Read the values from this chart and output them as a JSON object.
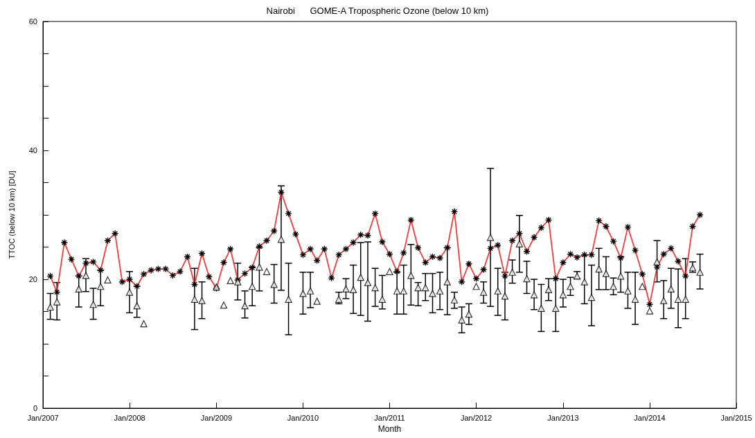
{
  "chart_data": {
    "type": "line",
    "title": "Nairobi      GOME-A Tropospheric Ozone (below 10 km)",
    "xlabel": "Month",
    "ylabel": "TTOC (below 10 km) [DU]",
    "x": [
      "2007-02",
      "2007-03",
      "2007-04",
      "2007-05",
      "2007-06",
      "2007-07",
      "2007-08",
      "2007-09",
      "2007-10",
      "2007-11",
      "2007-12",
      "2008-01",
      "2008-02",
      "2008-03",
      "2008-04",
      "2008-05",
      "2008-06",
      "2008-07",
      "2008-08",
      "2008-09",
      "2008-10",
      "2008-11",
      "2008-12",
      "2009-01",
      "2009-02",
      "2009-03",
      "2009-04",
      "2009-05",
      "2009-06",
      "2009-07",
      "2009-08",
      "2009-09",
      "2009-10",
      "2009-11",
      "2009-12",
      "2010-01",
      "2010-02",
      "2010-03",
      "2010-04",
      "2010-05",
      "2010-06",
      "2010-07",
      "2010-08",
      "2010-09",
      "2010-10",
      "2010-11",
      "2010-12",
      "2011-01",
      "2011-02",
      "2011-03",
      "2011-04",
      "2011-05",
      "2011-06",
      "2011-07",
      "2011-08",
      "2011-09",
      "2011-10",
      "2011-11",
      "2011-12",
      "2012-01",
      "2012-02",
      "2012-03",
      "2012-04",
      "2012-05",
      "2012-06",
      "2012-07",
      "2012-08",
      "2012-09",
      "2012-10",
      "2012-11",
      "2012-12",
      "2013-01",
      "2013-02",
      "2013-03",
      "2013-04",
      "2013-05",
      "2013-06",
      "2013-07",
      "2013-08",
      "2013-09",
      "2013-10",
      "2013-11",
      "2013-12",
      "2014-01",
      "2014-02",
      "2014-03",
      "2014-04",
      "2014-05",
      "2014-06",
      "2014-07",
      "2014-08"
    ],
    "series": [
      {
        "color": "#f03c3c",
        "marker": "cross",
        "values": [
          20.5,
          18.0,
          25.7,
          23.1,
          20.5,
          22.5,
          22.7,
          21.4,
          26.0,
          27.1,
          19.6,
          20.0,
          18.9,
          20.8,
          21.4,
          21.6,
          21.6,
          20.6,
          21.2,
          23.5,
          19.2,
          24.0,
          20.4,
          18.6,
          22.6,
          24.7,
          19.9,
          20.9,
          21.8,
          25.1,
          26.0,
          27.5,
          33.5,
          30.2,
          27.0,
          23.8,
          24.7,
          22.9,
          24.7,
          20.2,
          23.8,
          24.7,
          25.7,
          26.9,
          26.8,
          30.2,
          25.8,
          23.9,
          21.2,
          24.1,
          29.2,
          24.9,
          22.6,
          23.5,
          23.3,
          24.9,
          30.5,
          19.6,
          22.4,
          20.1,
          21.5,
          24.8,
          25.3,
          20.5,
          26.0,
          27.1,
          24.3,
          26.5,
          28.0,
          29.2,
          20.1,
          22.6,
          23.9,
          23.4,
          23.8,
          23.8,
          29.1,
          28.2,
          25.9,
          23.3,
          28.1,
          24.5,
          20.8,
          16.1,
          21.9,
          23.9,
          24.8,
          22.8,
          20.5,
          28.2,
          30.0
        ]
      },
      {
        "type": "scatter",
        "color": "#000000",
        "marker": "triangle",
        "values": [
          15.7,
          16.5,
          null,
          null,
          18.5,
          20.6,
          16.1,
          18.9,
          19.9,
          null,
          null,
          18.0,
          15.9,
          13.1,
          null,
          null,
          null,
          null,
          null,
          null,
          16.9,
          16.7,
          null,
          18.8,
          16.0,
          19.8,
          19.6,
          15.9,
          18.9,
          21.9,
          21.2,
          19.2,
          26.2,
          16.9,
          null,
          17.8,
          18.2,
          16.6,
          null,
          null,
          16.9,
          18.5,
          18.4,
          20.3,
          19.5,
          18.7,
          16.9,
          21.2,
          18.2,
          18.2,
          20.6,
          18.7,
          18.7,
          17.8,
          18.2,
          19.6,
          16.8,
          13.7,
          14.6,
          18.9,
          18.0,
          26.5,
          18.2,
          17.4,
          21.1,
          25.5,
          20.1,
          17.6,
          15.5,
          18.4,
          15.5,
          17.6,
          18.9,
          20.5,
          19.6,
          17.2,
          21.6,
          20.9,
          18.9,
          20.5,
          18.2,
          16.9,
          18.9,
          15.1,
          22.7,
          16.7,
          18.5,
          16.9,
          16.9,
          21.8,
          21.1
        ],
        "errors": [
          [
            13.8,
            17.8
          ],
          [
            13.7,
            19.5
          ],
          null,
          null,
          [
            15.7,
            20.5
          ],
          [
            18.1,
            23.2
          ],
          [
            13.8,
            18.6
          ],
          [
            15.9,
            21.4
          ],
          null,
          null,
          null,
          [
            14.8,
            21.2
          ],
          [
            14.1,
            18.9
          ],
          null,
          null,
          null,
          null,
          null,
          null,
          null,
          [
            12.2,
            21.7
          ],
          [
            13.9,
            19.6
          ],
          null,
          null,
          null,
          null,
          [
            16.8,
            22.5
          ],
          [
            14.0,
            18.2
          ],
          [
            15.9,
            21.9
          ],
          [
            18.2,
            24.9
          ],
          null,
          [
            16.3,
            22.3
          ],
          [
            18.3,
            34.5
          ],
          [
            11.4,
            22.5
          ],
          null,
          [
            14.6,
            21.1
          ],
          [
            15.6,
            21.1
          ],
          null,
          null,
          null,
          [
            16.2,
            18.0
          ],
          [
            17.0,
            20.1
          ],
          [
            14.7,
            22.2
          ],
          [
            14.4,
            25.7
          ],
          [
            13.5,
            25.8
          ],
          [
            15.8,
            21.7
          ],
          [
            15.4,
            20.6
          ],
          null,
          [
            14.6,
            21.1
          ],
          [
            14.6,
            22.2
          ],
          [
            16.0,
            25.4
          ],
          [
            15.9,
            19.5
          ],
          [
            16.7,
            20.9
          ],
          [
            14.8,
            20.9
          ],
          [
            15.3,
            21.1
          ],
          [
            14.5,
            24.9
          ],
          [
            15.5,
            18.0
          ],
          [
            11.7,
            15.7
          ],
          [
            13.0,
            16.2
          ],
          null,
          [
            16.3,
            19.6
          ],
          [
            15.8,
            37.2
          ],
          [
            14.4,
            21.7
          ],
          [
            13.7,
            21.1
          ],
          [
            19.4,
            23.0
          ],
          [
            21.1,
            29.9
          ],
          [
            17.8,
            22.8
          ],
          [
            15.3,
            20.0
          ],
          [
            11.9,
            19.2
          ],
          [
            16.7,
            20.1
          ],
          [
            11.9,
            20.1
          ],
          [
            15.7,
            20.0
          ],
          [
            17.5,
            20.3
          ],
          [
            20.1,
            21.2
          ],
          [
            16.2,
            23.7
          ],
          [
            12.8,
            22.2
          ],
          [
            18.4,
            24.8
          ],
          [
            18.4,
            23.5
          ],
          [
            17.6,
            20.2
          ],
          [
            18.0,
            23.5
          ],
          [
            15.5,
            21.1
          ],
          [
            13.0,
            21.1
          ],
          null,
          null,
          [
            19.6,
            26.0
          ],
          [
            13.9,
            19.8
          ],
          [
            15.5,
            21.7
          ],
          [
            12.5,
            21.6
          ],
          [
            13.9,
            23.2
          ],
          [
            21.1,
            22.7
          ],
          [
            18.5,
            23.9
          ]
        ]
      }
    ],
    "xlim": [
      "2007-01",
      "2015-01"
    ],
    "xticks": [
      {
        "value": "2007-01",
        "label": "Jan/2007"
      },
      {
        "value": "2008-01",
        "label": "Jan/2008"
      },
      {
        "value": "2009-01",
        "label": "Jan/2009"
      },
      {
        "value": "2010-01",
        "label": "Jan/2010"
      },
      {
        "value": "2011-01",
        "label": "Jan/2011"
      },
      {
        "value": "2012-01",
        "label": "Jan/2012"
      },
      {
        "value": "2013-01",
        "label": "Jan/2013"
      },
      {
        "value": "2014-01",
        "label": "Jan/2014"
      },
      {
        "value": "2015-01",
        "label": "Jan/2015"
      }
    ],
    "ylim": [
      0,
      60
    ],
    "yticks": [
      0,
      {
        "value": 5,
        "label": null
      },
      {
        "value": 10,
        "label": null
      },
      {
        "value": 15,
        "label": null
      },
      20,
      {
        "value": 25,
        "label": null
      },
      {
        "value": 30,
        "label": null
      },
      {
        "value": 35,
        "label": null
      },
      40,
      {
        "value": 45,
        "label": null
      },
      {
        "value": 50,
        "label": null
      },
      {
        "value": 55,
        "label": null
      },
      60
    ],
    "grid": false
  }
}
